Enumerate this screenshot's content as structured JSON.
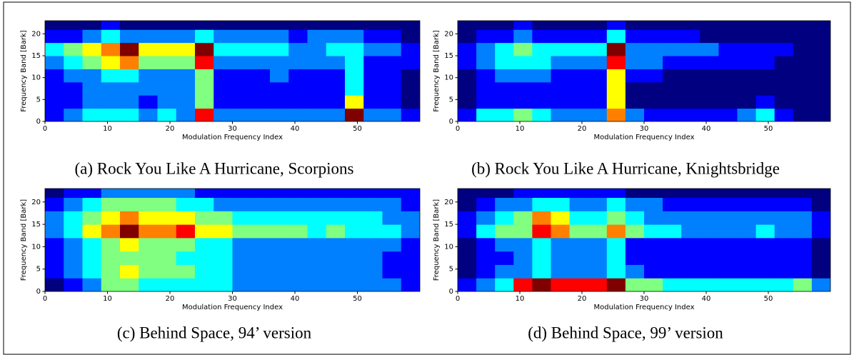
{
  "chart_data": [
    {
      "type": "heatmap",
      "caption": "(a) Rock You Like A Hurricane, Scorpions",
      "xlabel": "Modulation Frequency Index",
      "ylabel": "Frequency Band [Bark]",
      "xlim": [
        0,
        60
      ],
      "ylim": [
        0,
        23
      ],
      "xticks": [
        0,
        10,
        20,
        30,
        40,
        50
      ],
      "yticks": [
        0,
        5,
        10,
        15,
        20
      ],
      "xbins": [
        0,
        3,
        6,
        9,
        12,
        15,
        18,
        21,
        24,
        27,
        30,
        33,
        36,
        39,
        42,
        45,
        48,
        51,
        54,
        57,
        60
      ],
      "ybins": [
        0,
        3,
        6,
        9,
        12,
        15,
        18,
        21,
        24
      ],
      "z": [
        [
          2,
          3,
          4,
          4,
          4,
          3,
          4,
          3,
          8,
          3,
          3,
          3,
          3,
          3,
          3,
          3,
          9,
          3,
          3,
          2
        ],
        [
          2,
          2,
          3,
          3,
          3,
          2,
          3,
          3,
          5,
          2,
          2,
          2,
          2,
          2,
          2,
          2,
          6,
          2,
          2,
          1
        ],
        [
          2,
          2,
          3,
          3,
          3,
          3,
          3,
          3,
          5,
          2,
          2,
          2,
          2,
          2,
          2,
          2,
          4,
          2,
          2,
          1
        ],
        [
          2,
          3,
          3,
          4,
          4,
          3,
          3,
          3,
          5,
          2,
          2,
          2,
          3,
          2,
          2,
          2,
          4,
          2,
          2,
          1
        ],
        [
          3,
          4,
          5,
          6,
          7,
          5,
          5,
          5,
          8,
          3,
          3,
          3,
          3,
          3,
          3,
          3,
          4,
          2,
          2,
          2
        ],
        [
          4,
          5,
          6,
          7,
          9,
          6,
          6,
          6,
          9,
          4,
          4,
          4,
          4,
          3,
          3,
          4,
          4,
          3,
          3,
          2
        ],
        [
          2,
          2,
          3,
          4,
          3,
          3,
          3,
          3,
          4,
          3,
          3,
          3,
          3,
          2,
          3,
          3,
          3,
          2,
          2,
          1
        ],
        [
          1,
          1,
          1,
          2,
          1,
          1,
          1,
          1,
          1,
          1,
          1,
          1,
          1,
          1,
          1,
          1,
          1,
          1,
          1,
          1
        ]
      ]
    },
    {
      "type": "heatmap",
      "caption": "(b) Rock You Like A Hurricane, Knightsbridge",
      "xlabel": "Modulation Frequency Index",
      "ylabel": "Frequency Band [Bark]",
      "xlim": [
        0,
        60
      ],
      "ylim": [
        0,
        23
      ],
      "xticks": [
        0,
        10,
        20,
        30,
        40,
        50
      ],
      "yticks": [
        0,
        5,
        10,
        15,
        20
      ],
      "xbins": [
        0,
        3,
        6,
        9,
        12,
        15,
        18,
        21,
        24,
        27,
        30,
        33,
        36,
        39,
        42,
        45,
        48,
        51,
        54,
        57,
        60
      ],
      "ybins": [
        0,
        3,
        6,
        9,
        12,
        15,
        18,
        21,
        24
      ],
      "z": [
        [
          2,
          4,
          4,
          5,
          4,
          3,
          3,
          3,
          7,
          3,
          2,
          2,
          2,
          2,
          2,
          3,
          4,
          2,
          1,
          1
        ],
        [
          1,
          2,
          2,
          2,
          2,
          2,
          2,
          2,
          6,
          1,
          1,
          1,
          1,
          1,
          1,
          1,
          2,
          1,
          1,
          1
        ],
        [
          1,
          2,
          2,
          2,
          2,
          2,
          2,
          2,
          6,
          1,
          1,
          1,
          1,
          1,
          1,
          1,
          1,
          1,
          1,
          1
        ],
        [
          1,
          2,
          3,
          3,
          3,
          2,
          2,
          2,
          6,
          2,
          2,
          1,
          1,
          1,
          1,
          1,
          1,
          1,
          1,
          1
        ],
        [
          2,
          3,
          4,
          4,
          4,
          3,
          3,
          3,
          8,
          3,
          3,
          2,
          2,
          2,
          2,
          2,
          2,
          1,
          1,
          1
        ],
        [
          2,
          3,
          4,
          5,
          4,
          4,
          4,
          4,
          9,
          3,
          3,
          3,
          3,
          3,
          2,
          2,
          2,
          2,
          1,
          1
        ],
        [
          1,
          2,
          2,
          3,
          2,
          2,
          2,
          2,
          4,
          2,
          2,
          2,
          2,
          1,
          1,
          1,
          1,
          1,
          1,
          1
        ],
        [
          1,
          1,
          1,
          2,
          1,
          1,
          1,
          1,
          2,
          1,
          1,
          1,
          1,
          1,
          1,
          1,
          1,
          1,
          1,
          1
        ]
      ]
    },
    {
      "type": "heatmap",
      "caption": "(c) Behind Space, 94’ version",
      "xlabel": "Modulation Frequency Index",
      "ylabel": "Frequency Band [Bark]",
      "xlim": [
        0,
        60
      ],
      "ylim": [
        0,
        23
      ],
      "xticks": [
        0,
        10,
        20,
        30,
        40,
        50
      ],
      "yticks": [
        0,
        5,
        10,
        15,
        20
      ],
      "xbins": [
        0,
        3,
        6,
        9,
        12,
        15,
        18,
        21,
        24,
        27,
        30,
        33,
        36,
        39,
        42,
        45,
        48,
        51,
        54,
        57,
        60
      ],
      "ybins": [
        0,
        3,
        6,
        9,
        12,
        15,
        18,
        21,
        24
      ],
      "z": [
        [
          1,
          2,
          3,
          5,
          5,
          4,
          4,
          4,
          4,
          4,
          3,
          3,
          3,
          3,
          3,
          3,
          3,
          3,
          3,
          2
        ],
        [
          2,
          3,
          4,
          5,
          6,
          5,
          5,
          5,
          4,
          4,
          3,
          3,
          3,
          3,
          3,
          3,
          3,
          3,
          2,
          2
        ],
        [
          2,
          3,
          4,
          5,
          5,
          5,
          5,
          4,
          4,
          4,
          3,
          3,
          3,
          3,
          3,
          3,
          3,
          3,
          2,
          2
        ],
        [
          2,
          3,
          4,
          5,
          6,
          5,
          5,
          5,
          4,
          4,
          3,
          3,
          3,
          3,
          3,
          3,
          3,
          3,
          3,
          2
        ],
        [
          3,
          4,
          6,
          7,
          9,
          7,
          7,
          8,
          6,
          6,
          5,
          5,
          5,
          5,
          4,
          5,
          4,
          4,
          4,
          3
        ],
        [
          3,
          4,
          5,
          6,
          7,
          6,
          6,
          6,
          5,
          5,
          4,
          4,
          4,
          4,
          4,
          4,
          4,
          4,
          3,
          3
        ],
        [
          2,
          3,
          4,
          5,
          5,
          5,
          5,
          4,
          4,
          3,
          3,
          3,
          3,
          3,
          3,
          3,
          3,
          3,
          3,
          2
        ],
        [
          1,
          2,
          2,
          3,
          3,
          3,
          3,
          3,
          2,
          2,
          2,
          2,
          2,
          2,
          2,
          2,
          2,
          2,
          2,
          2
        ]
      ]
    },
    {
      "type": "heatmap",
      "caption": "(d) Behind Space, 99’ version",
      "xlabel": "Modulation Frequency Index",
      "ylabel": "Frequency Band [Bark]",
      "xlim": [
        0,
        60
      ],
      "ylim": [
        0,
        23
      ],
      "xticks": [
        0,
        10,
        20,
        30,
        40,
        50
      ],
      "yticks": [
        0,
        5,
        10,
        15,
        20
      ],
      "xbins": [
        0,
        3,
        6,
        9,
        12,
        15,
        18,
        21,
        24,
        27,
        30,
        33,
        36,
        39,
        42,
        45,
        48,
        51,
        54,
        57,
        60
      ],
      "ybins": [
        0,
        3,
        6,
        9,
        12,
        15,
        18,
        21,
        24
      ],
      "z": [
        [
          2,
          3,
          4,
          8,
          9,
          8,
          8,
          8,
          9,
          5,
          5,
          4,
          4,
          4,
          4,
          4,
          4,
          4,
          5,
          3
        ],
        [
          1,
          2,
          3,
          3,
          4,
          3,
          3,
          3,
          4,
          3,
          2,
          2,
          2,
          2,
          2,
          2,
          2,
          2,
          2,
          1
        ],
        [
          1,
          2,
          2,
          3,
          4,
          3,
          3,
          3,
          4,
          2,
          2,
          2,
          2,
          2,
          2,
          2,
          2,
          2,
          2,
          1
        ],
        [
          1,
          2,
          3,
          3,
          4,
          3,
          3,
          3,
          4,
          2,
          2,
          2,
          2,
          2,
          2,
          2,
          2,
          2,
          2,
          1
        ],
        [
          2,
          4,
          5,
          5,
          8,
          7,
          5,
          5,
          7,
          5,
          4,
          4,
          3,
          3,
          3,
          3,
          4,
          3,
          3,
          2
        ],
        [
          2,
          3,
          4,
          5,
          7,
          6,
          4,
          4,
          5,
          4,
          3,
          3,
          3,
          3,
          3,
          3,
          3,
          3,
          3,
          2
        ],
        [
          1,
          2,
          3,
          3,
          4,
          4,
          3,
          3,
          4,
          3,
          3,
          2,
          2,
          2,
          2,
          2,
          2,
          2,
          2,
          1
        ],
        [
          1,
          1,
          1,
          2,
          2,
          2,
          2,
          2,
          2,
          1,
          1,
          1,
          1,
          1,
          1,
          1,
          1,
          1,
          1,
          1
        ]
      ]
    }
  ]
}
